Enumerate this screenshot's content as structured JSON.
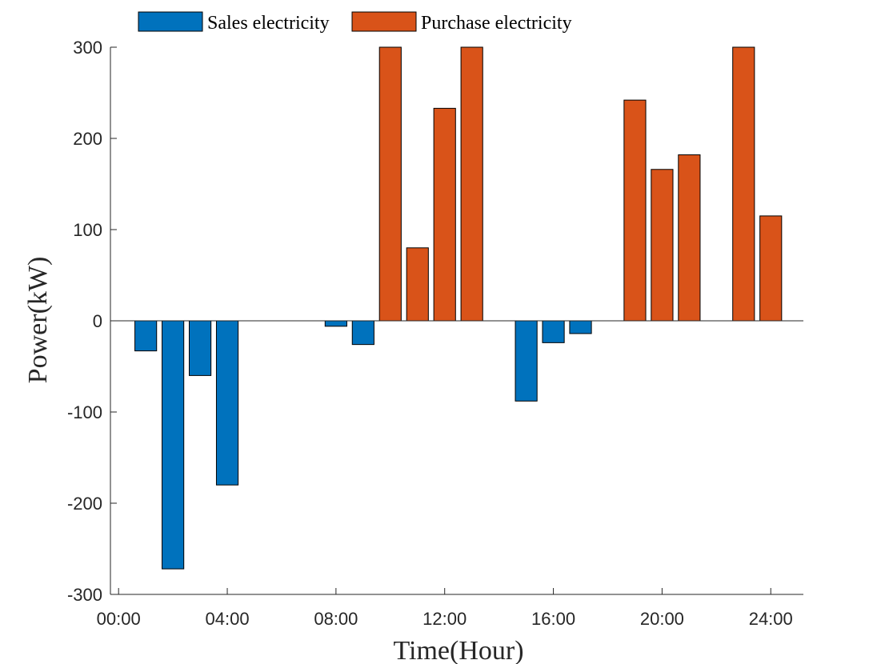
{
  "chart_data": {
    "type": "bar",
    "xlabel": "Time(Hour)",
    "ylabel": "Power(kW)",
    "ylim": [
      -300,
      300
    ],
    "xlim": [
      -0.3,
      25.2
    ],
    "yticks": [
      -300,
      -200,
      -100,
      0,
      100,
      200,
      300
    ],
    "ytick_labels": [
      "-300",
      "-200",
      "-100",
      "0",
      "100",
      "200",
      "300"
    ],
    "xticks": [
      0,
      4,
      8,
      12,
      16,
      20,
      24
    ],
    "xtick_labels": [
      "00:00",
      "04:00",
      "08:00",
      "12:00",
      "16:00",
      "20:00",
      "24:00"
    ],
    "legend_position": "top",
    "series": [
      {
        "name": "Sales electricity",
        "color": "#0072BD",
        "x": [
          1,
          2,
          3,
          4,
          8,
          9,
          15,
          16,
          17
        ],
        "values": [
          -33,
          -272,
          -60,
          -180,
          -6,
          -26,
          -88,
          -24,
          -14
        ]
      },
      {
        "name": "Purchase electricity",
        "color": "#D95319",
        "x": [
          10,
          11,
          12,
          13,
          19,
          20,
          21,
          23,
          24
        ],
        "values": [
          300,
          80,
          233,
          300,
          242,
          166,
          182,
          300,
          115
        ]
      }
    ]
  }
}
